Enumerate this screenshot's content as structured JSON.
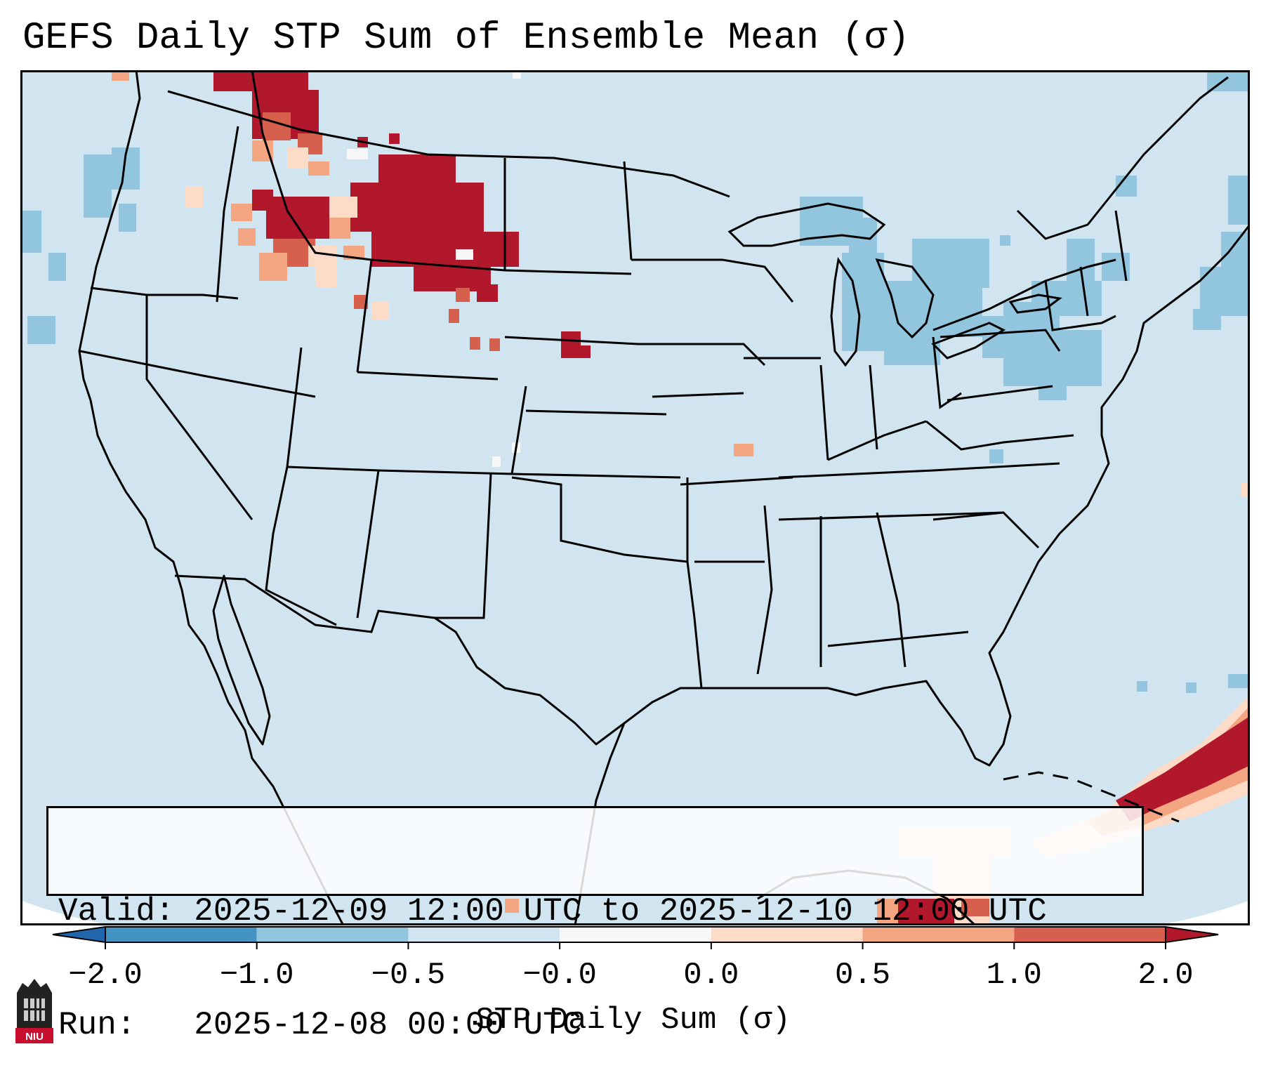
{
  "title": "GEFS Daily STP Sum of Ensemble Mean (σ)",
  "info": {
    "valid_line": "Valid: 2025-12-09 12:00 UTC to 2025-12-10 12:00 UTC",
    "run_line": "Run:   2025-12-08 00:00 UTC"
  },
  "colorbar": {
    "label": "STP Daily Sum (σ)",
    "ticks": [
      "−2.0",
      "−1.0",
      "−0.5",
      "−0.0",
      "0.0",
      "0.5",
      "1.0",
      "2.0"
    ],
    "colors": [
      "#4393c3",
      "#92c5de",
      "#d1e5f0",
      "#f7f7f7",
      "#fddbc7",
      "#f4a582",
      "#d6604d"
    ],
    "under_color": "#2166ac",
    "over_color": "#b2182b"
  },
  "map": {
    "background_color": "#d1e5f0",
    "region": "Contiguous United States",
    "logo_text": "NIU"
  }
}
